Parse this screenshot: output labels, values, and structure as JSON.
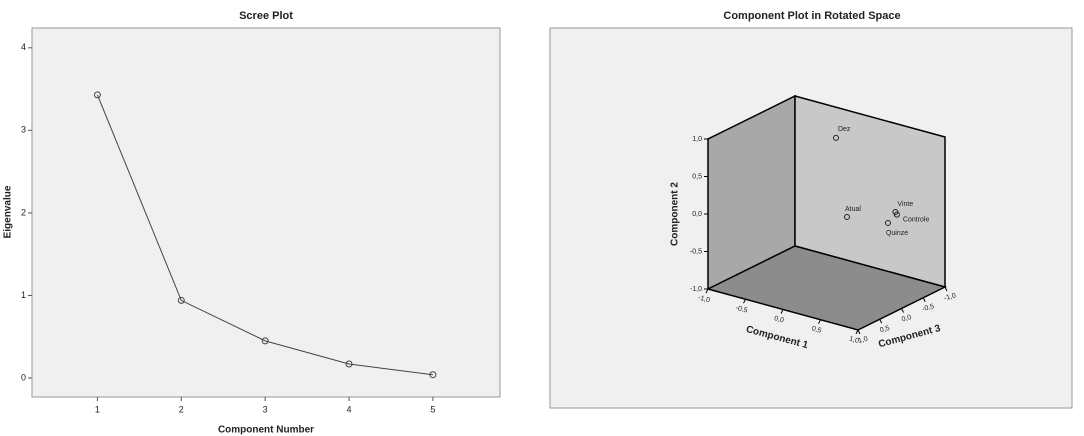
{
  "chart_data": [
    {
      "type": "line",
      "title": "Scree Plot",
      "xlabel": "Component Number",
      "ylabel": "Eigenvalue",
      "x": [
        1,
        2,
        3,
        4,
        5
      ],
      "values": [
        3.43,
        0.94,
        0.45,
        0.17,
        0.04
      ],
      "color": "#444444",
      "xlim": [
        0.22,
        5.8
      ],
      "ylim": [
        -0.23,
        4.24
      ],
      "xticks": [
        1,
        2,
        3,
        4,
        5
      ],
      "yticks": [
        0,
        1,
        2,
        3,
        4
      ]
    },
    {
      "type": "scatter3d",
      "title": "Component Plot in Rotated Space",
      "xlabel": "Component 1",
      "ylabel": "Component 2",
      "zlabel": "Component 3",
      "labels": [
        "Dez",
        "Atual",
        "Vinte",
        "Controle",
        "Quinze"
      ],
      "x": [
        0.08,
        0.18,
        0.6,
        0.62,
        0.57
      ],
      "y": [
        1.0,
        -0.05,
        0.02,
        -0.01,
        -0.1
      ],
      "z": [
        -0.08,
        -0.16,
        -0.55,
        -0.55,
        -0.43
      ],
      "xlim": [
        -1,
        1
      ],
      "ylim": [
        -1,
        1
      ],
      "zlim": [
        -1,
        1
      ],
      "xticks": [
        {
          "value": -1,
          "label": "-1,0"
        },
        {
          "value": -0.5,
          "label": "-0,5"
        },
        {
          "value": 0,
          "label": "0,0"
        },
        {
          "value": 0.5,
          "label": "0,5"
        },
        {
          "value": 1,
          "label": "1,0"
        }
      ],
      "yticks": [
        {
          "value": -1,
          "label": "-1,0"
        },
        {
          "value": -0.5,
          "label": "-0,5"
        },
        {
          "value": 0,
          "label": "0,0"
        },
        {
          "value": 0.5,
          "label": "0,5"
        },
        {
          "value": 1,
          "label": "1,0"
        }
      ],
      "zticks": [
        {
          "value": 1,
          "label": "1,0"
        },
        {
          "value": 0.5,
          "label": "0,5"
        },
        {
          "value": 0,
          "label": "0,0"
        },
        {
          "value": -0.5,
          "label": "-0,5"
        },
        {
          "value": -1,
          "label": "-1,0"
        }
      ]
    }
  ]
}
